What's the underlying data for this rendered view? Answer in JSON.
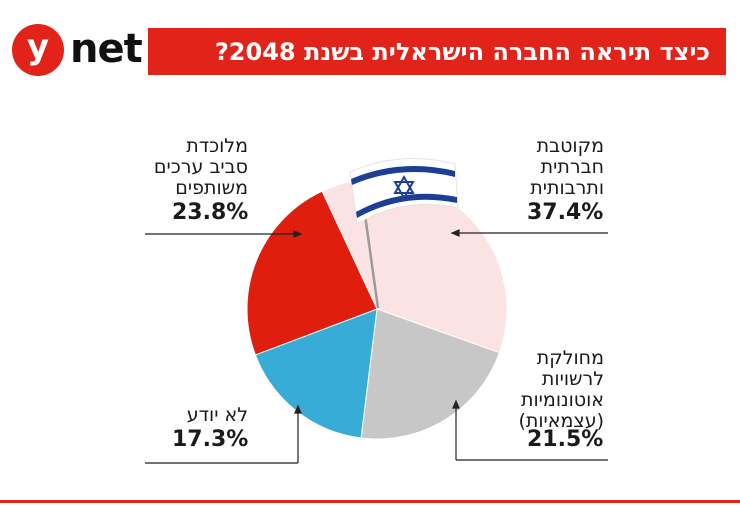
{
  "header": {
    "logo_letter": "y",
    "logo_text": "net",
    "title": "כיצד תיראה החברה הישראלית בשנת 2048?"
  },
  "colors": {
    "brand_red": "#e2231a",
    "slice_red": "#e01e0e",
    "slice_pink": "#fbe3e3",
    "slice_gray": "#c7c7c7",
    "slice_blue": "#36acd6",
    "flag_blue": "#1c3f95"
  },
  "chart_data": {
    "type": "pie",
    "title": "כיצד תיראה החברה הישראלית בשנת 2048?",
    "slices": [
      {
        "label": "מקוטבת חברתית ותרבותית",
        "value": 37.4,
        "display": "37.4%",
        "color": "#fbe3e3"
      },
      {
        "label": "מחולקת לרשויות אוטונומיות (עצמאיות)",
        "value": 21.5,
        "display": "21.5%",
        "color": "#c7c7c7"
      },
      {
        "label": "לא יודע",
        "value": 17.3,
        "display": "17.3%",
        "color": "#36acd6"
      },
      {
        "label": "מלוכדת סביב ערכים משותפים",
        "value": 23.8,
        "display": "23.8%",
        "color": "#e01e0e"
      }
    ]
  },
  "labels": {
    "polarized": [
      "מקוטבת",
      "חברתית",
      "ותרבותית"
    ],
    "divided": [
      "מחולקת",
      "לרשויות",
      "אוטונומיות",
      "(עצמאיות)"
    ],
    "unknown": [
      "לא יודע"
    ],
    "united": [
      "מלוכדת",
      "סביב ערכים",
      "משותפים"
    ]
  }
}
